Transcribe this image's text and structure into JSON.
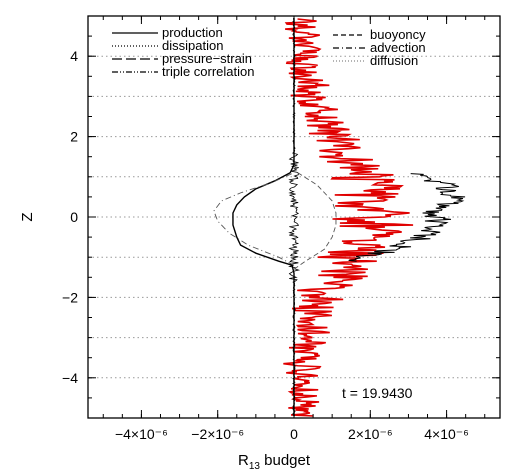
{
  "chart_data": {
    "type": "line",
    "title": "",
    "xlabel": "R",
    "xlabel_sub": "13",
    "xlabel_suffix": " budget",
    "ylabel": "Z",
    "xlim": [
      -5.4e-06,
      5.4e-06
    ],
    "ylim": [
      -5,
      5
    ],
    "x_ticks": [
      {
        "value": -4e-06,
        "label": "−4×10⁻⁶"
      },
      {
        "value": -2e-06,
        "label": "−2×10⁻⁶"
      },
      {
        "value": 0,
        "label": "0"
      },
      {
        "value": 2e-06,
        "label": "2×10⁻⁶"
      },
      {
        "value": 4e-06,
        "label": "4×10⁻⁶"
      }
    ],
    "y_ticks": [
      {
        "value": -4,
        "label": "−4"
      },
      {
        "value": -2,
        "label": "−2"
      },
      {
        "value": 0,
        "label": "0"
      },
      {
        "value": 2,
        "label": "2"
      },
      {
        "value": 4,
        "label": "4"
      }
    ],
    "grid_lines_y": [
      -4,
      -3,
      -2,
      -1,
      0,
      1,
      2,
      3,
      4
    ],
    "annotation": "t = 19.9430",
    "legend": {
      "left": [
        {
          "name": "production",
          "style": "solid"
        },
        {
          "name": "dissipation",
          "style": "dotted"
        },
        {
          "name": "pressure−strain",
          "style": "longdash"
        },
        {
          "name": "triple correlation",
          "style": "dashdotdot"
        }
      ],
      "right": [
        {
          "name": "buoyoncy",
          "style": "dashed"
        },
        {
          "name": "advection",
          "style": "dashdot"
        },
        {
          "name": "diffusion",
          "style": "dotted-gray"
        }
      ]
    },
    "series": [
      {
        "name": "production",
        "color": "#000000",
        "style": "solid",
        "points": [
          [
            0,
            -4.95
          ],
          [
            0,
            -1.4
          ],
          [
            -5e-08,
            -1.2
          ],
          [
            -4e-07,
            -1.1
          ],
          [
            -1e-06,
            -0.9
          ],
          [
            -1.4e-06,
            -0.7
          ],
          [
            -1.5e-06,
            -0.5
          ],
          [
            -1.6e-06,
            -0.2
          ],
          [
            -1.6e-06,
            0.1
          ],
          [
            -1.5e-06,
            0.3
          ],
          [
            -1.3e-06,
            0.5
          ],
          [
            -1e-06,
            0.7
          ],
          [
            -5e-07,
            0.9
          ],
          [
            -1e-07,
            1.1
          ],
          [
            0,
            1.3
          ],
          [
            0,
            4.95
          ]
        ]
      },
      {
        "name": "pressure−strain",
        "color": "#555555",
        "style": "dashed",
        "points": [
          [
            0,
            -1.3
          ],
          [
            3e-07,
            -1.1
          ],
          [
            8e-07,
            -0.8
          ],
          [
            1e-06,
            -0.5
          ],
          [
            1.1e-06,
            -0.2
          ],
          [
            1.1e-06,
            0.1
          ],
          [
            1e-06,
            0.4
          ],
          [
            6e-07,
            0.8
          ],
          [
            1e-07,
            1.1
          ],
          [
            0,
            1.3
          ]
        ]
      },
      {
        "name": "advection",
        "color": "#555555",
        "style": "dashdot",
        "points": [
          [
            0,
            -1.2
          ],
          [
            -4e-07,
            -1.0
          ],
          [
            -1.2e-06,
            -0.7
          ],
          [
            -1.7e-06,
            -0.4
          ],
          [
            -2e-06,
            -0.1
          ],
          [
            -2.1e-06,
            0.15
          ],
          [
            -1.9e-06,
            0.4
          ],
          [
            -1.4e-06,
            0.6
          ],
          [
            -6e-07,
            0.85
          ],
          [
            0,
            1.1
          ]
        ]
      }
    ],
    "traces_note_values": {
      "diffusion_red_range_x": [
        -1e-07,
        3.5e-06
      ],
      "buoyancy_black_peak_x": 4.9e-06
    }
  }
}
